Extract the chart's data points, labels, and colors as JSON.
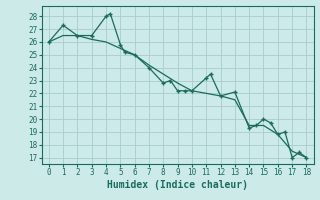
{
  "xlabel": "Humidex (Indice chaleur)",
  "background_color": "#cceae7",
  "grid_color": "#aacccc",
  "line_color": "#1a6b5e",
  "x_jagged": [
    0,
    1,
    2,
    3,
    4,
    4.3,
    5,
    5.3,
    6,
    7,
    8,
    8.5,
    9,
    9.5,
    10,
    11,
    11.3,
    12,
    13,
    14,
    14.5,
    15,
    15.5,
    16,
    16.5,
    17,
    17.5,
    18
  ],
  "y_jagged": [
    26.0,
    27.3,
    26.5,
    26.5,
    28.0,
    28.2,
    25.8,
    25.2,
    25.0,
    24.0,
    22.8,
    23.0,
    22.2,
    22.2,
    22.2,
    23.2,
    23.5,
    21.8,
    22.1,
    19.3,
    19.5,
    20.0,
    19.7,
    18.8,
    19.0,
    17.0,
    17.4,
    17.0
  ],
  "x_smooth": [
    0,
    1,
    2,
    3,
    4,
    5,
    6,
    7,
    8,
    9,
    10,
    11,
    12,
    13,
    14,
    15,
    16,
    17,
    18
  ],
  "y_smooth": [
    26.0,
    26.5,
    26.5,
    26.2,
    26.0,
    25.5,
    25.0,
    24.2,
    23.5,
    22.8,
    22.2,
    22.0,
    21.8,
    21.5,
    19.5,
    19.5,
    18.8,
    17.5,
    17.0
  ],
  "ylim_min": 16.5,
  "ylim_max": 28.8,
  "xlim_min": -0.5,
  "xlim_max": 18.5,
  "yticks": [
    17,
    18,
    19,
    20,
    21,
    22,
    23,
    24,
    25,
    26,
    27,
    28
  ],
  "xticks": [
    0,
    1,
    2,
    3,
    4,
    5,
    6,
    7,
    8,
    9,
    10,
    11,
    12,
    13,
    14,
    15,
    16,
    17,
    18
  ],
  "tick_fontsize": 5.5,
  "xlabel_fontsize": 7
}
